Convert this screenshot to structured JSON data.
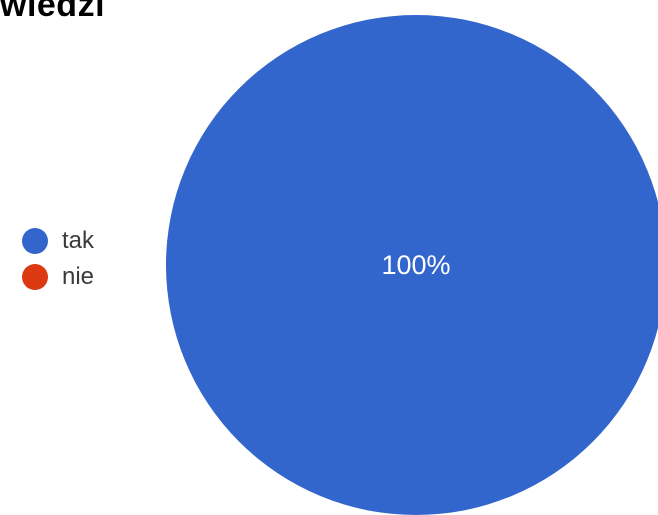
{
  "chart_data": {
    "type": "pie",
    "title": "wiedzi",
    "categories": [
      "tak",
      "nie"
    ],
    "values": [
      100,
      0
    ],
    "data_labels": [
      "100%",
      ""
    ],
    "colors": [
      "#3366cc",
      "#dc3912"
    ],
    "legend_placement": "left"
  }
}
